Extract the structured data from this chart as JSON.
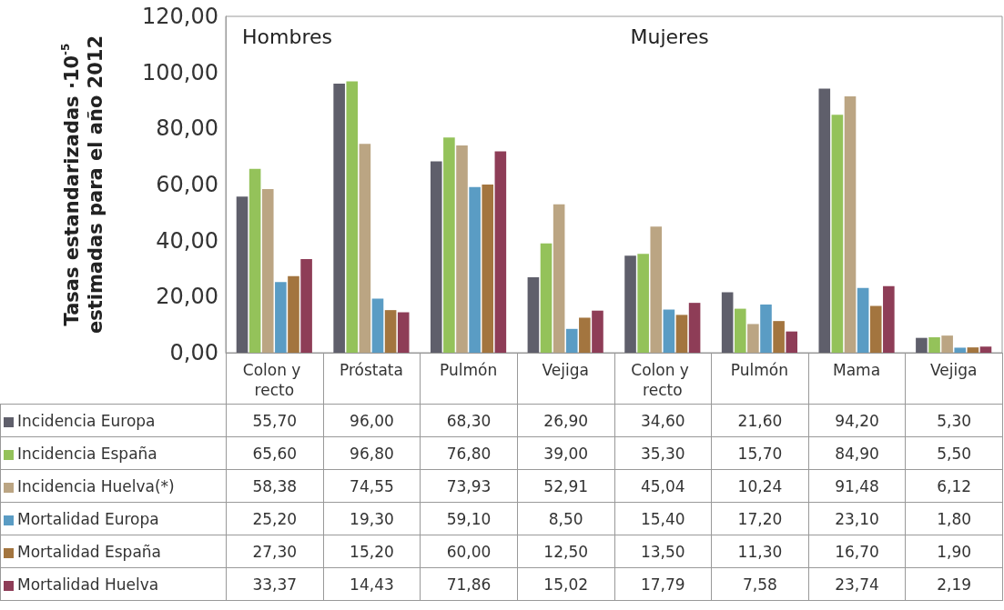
{
  "chart_data": {
    "type": "bar",
    "ylabel": "Tasas estandarizadas ·10$^{-5}$\nestimadas para el año 2012",
    "categories": [
      "Colon y recto",
      "Próstata",
      "Pulmón",
      "Vejiga",
      "Colon y recto",
      "Pulmón",
      "Mama",
      "Vejiga"
    ],
    "series": [
      {
        "name": "Incidencia Europa",
        "color": "#5f5f6b",
        "values": [
          55.7,
          96.0,
          68.3,
          26.9,
          34.6,
          21.6,
          94.2,
          5.3
        ],
        "value_labels": [
          "55,70",
          "96,00",
          "68,30",
          "26,90",
          "34,60",
          "21,60",
          "94,20",
          "5,30"
        ]
      },
      {
        "name": "Incidencia España",
        "color": "#94c25a",
        "values": [
          65.6,
          96.8,
          76.8,
          39.0,
          35.3,
          15.7,
          84.9,
          5.5
        ],
        "value_labels": [
          "65,60",
          "96,80",
          "76,80",
          "39,00",
          "35,30",
          "15,70",
          "84,90",
          "5,50"
        ]
      },
      {
        "name": "Incidencia Huelva(*)",
        "color": "#bba583",
        "values": [
          58.38,
          74.55,
          73.93,
          52.91,
          45.04,
          10.24,
          91.48,
          6.12
        ],
        "value_labels": [
          "58,38",
          "74,55",
          "73,93",
          "52,91",
          "45,04",
          "10,24",
          "91,48",
          "6,12"
        ]
      },
      {
        "name": "Mortalidad Europa",
        "color": "#5a9cc4",
        "values": [
          25.2,
          19.3,
          59.1,
          8.5,
          15.4,
          17.2,
          23.1,
          1.8
        ],
        "value_labels": [
          "25,20",
          "19,30",
          "59,10",
          "8,50",
          "15,40",
          "17,20",
          "23,10",
          "1,80"
        ]
      },
      {
        "name": "Mortalidad España",
        "color": "#a3753f",
        "values": [
          27.3,
          15.2,
          60.0,
          12.5,
          13.5,
          11.3,
          16.7,
          1.9
        ],
        "value_labels": [
          "27,30",
          "15,20",
          "60,00",
          "12,50",
          "13,50",
          "11,30",
          "16,70",
          "1,90"
        ]
      },
      {
        "name": "Mortalidad Huelva",
        "color": "#8e3d57",
        "values": [
          33.37,
          14.43,
          71.86,
          15.02,
          17.79,
          7.58,
          23.74,
          2.19
        ],
        "value_labels": [
          "33,37",
          "14,43",
          "71,86",
          "15,02",
          "17,79",
          "7,58",
          "23,74",
          "2,19"
        ]
      }
    ],
    "ylim": [
      0,
      120
    ],
    "yticks": [
      {
        "value": 0,
        "label": "0,00"
      },
      {
        "value": 20,
        "label": "20,00"
      },
      {
        "value": 40,
        "label": "40,00"
      },
      {
        "value": 60,
        "label": "60,00"
      },
      {
        "value": 80,
        "label": "80,00"
      },
      {
        "value": 100,
        "label": "100,00"
      },
      {
        "value": 120,
        "label": "120,00"
      }
    ],
    "annotations": [
      "Hombres",
      "Mujeres"
    ],
    "legend": "bottom",
    "grid": false
  }
}
